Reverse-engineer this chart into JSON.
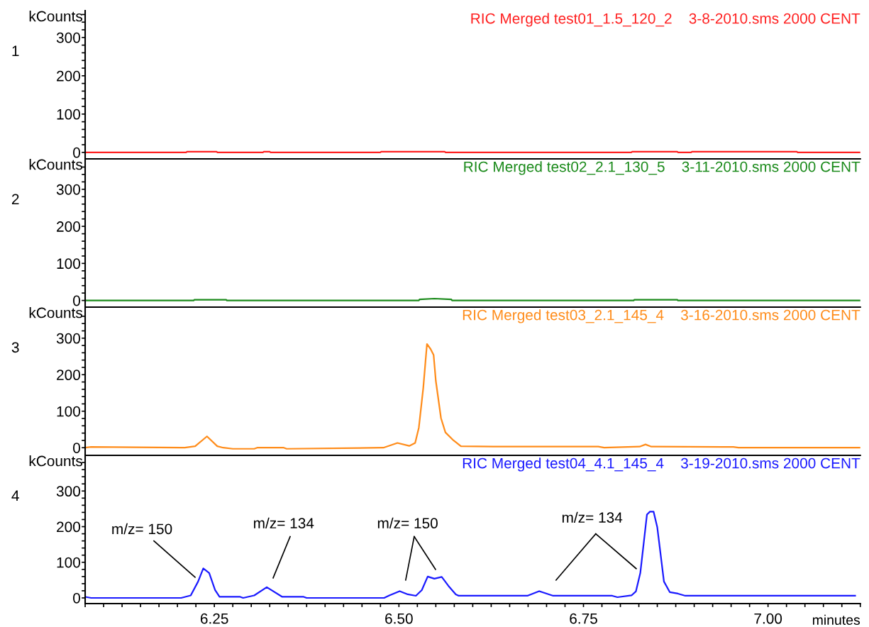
{
  "chart_data": [
    {
      "type": "line",
      "title": "RIC Merged test01_1.5_120_2    3-8-2010.sms 2000 CENT",
      "ylabel": "kCounts",
      "annotations": [
        "1"
      ],
      "tick_labels": "y",
      "xlim": [
        6.075,
        7.125
      ],
      "ylim": [
        -17,
        370
      ],
      "yticks": [
        0,
        {
          "value": 20,
          "label": null
        },
        {
          "value": 40,
          "label": null
        },
        {
          "value": 60,
          "label": null
        },
        {
          "value": 80,
          "label": null
        },
        100,
        {
          "value": 120,
          "label": null
        },
        {
          "value": 140,
          "label": null
        },
        {
          "value": 160,
          "label": null
        },
        {
          "value": 180,
          "label": null
        },
        200,
        {
          "value": 220,
          "label": null
        },
        {
          "value": 240,
          "label": null
        },
        {
          "value": 260,
          "label": null
        },
        {
          "value": 280,
          "label": null
        },
        300,
        {
          "value": 320,
          "label": null
        },
        {
          "value": 340,
          "label": null
        },
        {
          "value": 360,
          "label": null
        }
      ],
      "x": [
        6.075,
        6.212,
        6.213,
        6.253,
        6.254,
        6.316,
        6.317,
        6.325,
        6.326,
        6.475,
        6.476,
        6.562,
        6.563,
        6.815,
        6.816,
        6.877,
        6.878,
        6.896,
        6.897,
        7.039,
        7.04,
        7.125
      ],
      "series": [
        {
          "color": "#ff2020",
          "values": [
            0,
            0,
            2,
            2,
            0,
            0,
            2,
            2,
            0,
            0,
            2,
            2,
            0,
            0,
            2,
            2,
            0,
            0,
            2,
            2,
            0,
            0
          ]
        }
      ]
    },
    {
      "type": "line",
      "title": "RIC Merged test02_2.1_130_5    3-11-2010.sms 2000 CENT",
      "ylabel": "kCounts",
      "annotations": [
        "2"
      ],
      "tick_labels": "y",
      "xlim": [
        6.075,
        7.125
      ],
      "ylim": [
        -18,
        382
      ],
      "yticks": [
        0,
        {
          "value": 20,
          "label": null
        },
        {
          "value": 40,
          "label": null
        },
        {
          "value": 60,
          "label": null
        },
        {
          "value": 80,
          "label": null
        },
        100,
        {
          "value": 120,
          "label": null
        },
        {
          "value": 140,
          "label": null
        },
        {
          "value": 160,
          "label": null
        },
        {
          "value": 180,
          "label": null
        },
        200,
        {
          "value": 220,
          "label": null
        },
        {
          "value": 240,
          "label": null
        },
        {
          "value": 260,
          "label": null
        },
        {
          "value": 280,
          "label": null
        },
        300,
        {
          "value": 320,
          "label": null
        },
        {
          "value": 340,
          "label": null
        },
        {
          "value": 360,
          "label": null
        }
      ],
      "x": [
        6.075,
        6.222,
        6.223,
        6.266,
        6.267,
        6.527,
        6.528,
        6.548,
        6.571,
        6.572,
        6.818,
        6.819,
        6.877,
        6.878,
        7.125
      ],
      "series": [
        {
          "color": "#1a8a1a",
          "values": [
            0,
            0,
            2,
            2,
            0,
            0,
            3,
            5,
            3,
            0,
            0,
            2,
            2,
            0,
            0
          ]
        }
      ]
    },
    {
      "type": "line",
      "title": "RIC Merged test03_2.1_145_4    3-16-2010.sms 2000 CENT",
      "ylabel": "kCounts",
      "annotations": [
        "3"
      ],
      "tick_labels": "y",
      "xlim": [
        6.075,
        7.125
      ],
      "ylim": [
        -21,
        385
      ],
      "yticks": [
        0,
        {
          "value": 20,
          "label": null
        },
        {
          "value": 40,
          "label": null
        },
        {
          "value": 60,
          "label": null
        },
        {
          "value": 80,
          "label": null
        },
        100,
        {
          "value": 120,
          "label": null
        },
        {
          "value": 140,
          "label": null
        },
        {
          "value": 160,
          "label": null
        },
        {
          "value": 180,
          "label": null
        },
        200,
        {
          "value": 220,
          "label": null
        },
        {
          "value": 240,
          "label": null
        },
        {
          "value": 260,
          "label": null
        },
        {
          "value": 280,
          "label": null
        },
        300,
        {
          "value": 320,
          "label": null
        },
        {
          "value": 340,
          "label": null
        },
        {
          "value": 360,
          "label": null
        }
      ],
      "x": [
        6.075,
        6.083,
        6.21,
        6.224,
        6.24,
        6.254,
        6.262,
        6.275,
        6.304,
        6.308,
        6.344,
        6.348,
        6.479,
        6.498,
        6.514,
        6.522,
        6.527,
        6.533,
        6.538,
        6.543,
        6.547,
        6.55,
        6.557,
        6.563,
        6.574,
        6.584,
        6.628,
        6.77,
        6.778,
        6.826,
        6.834,
        6.842,
        6.953,
        6.96,
        7.125
      ],
      "series": [
        {
          "color": "#ff8c1a",
          "values": [
            0,
            2,
            0,
            4,
            31,
            4,
            0,
            -3,
            -3,
            0,
            0,
            -3,
            0,
            13,
            5,
            13,
            55,
            164,
            284,
            270,
            254,
            183,
            81,
            42,
            20,
            4,
            3,
            3,
            0,
            3,
            9,
            3,
            2,
            0,
            0
          ]
        }
      ]
    },
    {
      "type": "line",
      "title": "RIC Merged test04_4.1_145_4    3-19-2010.sms 2000 CENT",
      "ylabel": "kCounts",
      "xlabel": "minutes",
      "annotations": [
        "4",
        "m/z= 150",
        "m/z= 134",
        "m/z= 150",
        "m/z= 134"
      ],
      "xlim": [
        6.075,
        7.125
      ],
      "ylim": [
        -16,
        400
      ],
      "xticks": [
        {
          "value": 6.075,
          "label": null
        },
        {
          "value": 6.1,
          "label": null
        },
        {
          "value": 6.125,
          "label": null
        },
        {
          "value": 6.15,
          "label": null
        },
        {
          "value": 6.175,
          "label": null
        },
        {
          "value": 6.2,
          "label": null
        },
        {
          "value": 6.225,
          "label": null
        },
        6.25,
        {
          "value": 6.275,
          "label": null
        },
        {
          "value": 6.3,
          "label": null
        },
        {
          "value": 6.325,
          "label": null
        },
        {
          "value": 6.35,
          "label": null
        },
        {
          "value": 6.375,
          "label": null
        },
        {
          "value": 6.4,
          "label": null
        },
        {
          "value": 6.425,
          "label": null
        },
        {
          "value": 6.45,
          "label": null
        },
        {
          "value": 6.475,
          "label": null
        },
        {
          "value": 6.5,
          "label": "6.50"
        },
        {
          "value": 6.525,
          "label": null
        },
        {
          "value": 6.55,
          "label": null
        },
        {
          "value": 6.575,
          "label": null
        },
        {
          "value": 6.6,
          "label": null
        },
        {
          "value": 6.625,
          "label": null
        },
        {
          "value": 6.65,
          "label": null
        },
        {
          "value": 6.675,
          "label": null
        },
        {
          "value": 6.7,
          "label": null
        },
        {
          "value": 6.725,
          "label": null
        },
        6.75,
        {
          "value": 6.775,
          "label": null
        },
        {
          "value": 6.8,
          "label": null
        },
        {
          "value": 6.825,
          "label": null
        },
        {
          "value": 6.85,
          "label": null
        },
        {
          "value": 6.875,
          "label": null
        },
        {
          "value": 6.9,
          "label": null
        },
        {
          "value": 6.925,
          "label": null
        },
        {
          "value": 6.95,
          "label": null
        },
        {
          "value": 6.975,
          "label": null
        },
        {
          "value": 7.0,
          "label": "7.00"
        },
        {
          "value": 7.025,
          "label": null
        },
        {
          "value": 7.05,
          "label": null
        },
        {
          "value": 7.075,
          "label": null
        },
        {
          "value": 7.1,
          "label": null
        },
        {
          "value": 7.125,
          "label": null
        }
      ],
      "yticks": [
        0,
        {
          "value": 20,
          "label": null
        },
        {
          "value": 40,
          "label": null
        },
        {
          "value": 60,
          "label": null
        },
        {
          "value": 80,
          "label": null
        },
        100,
        {
          "value": 120,
          "label": null
        },
        {
          "value": 140,
          "label": null
        },
        {
          "value": 160,
          "label": null
        },
        {
          "value": 180,
          "label": null
        },
        200,
        {
          "value": 220,
          "label": null
        },
        {
          "value": 240,
          "label": null
        },
        {
          "value": 260,
          "label": null
        },
        {
          "value": 280,
          "label": null
        },
        300,
        {
          "value": 320,
          "label": null
        },
        {
          "value": 340,
          "label": null
        },
        {
          "value": 360,
          "label": null
        },
        {
          "value": 380,
          "label": null
        }
      ],
      "x": [
        6.075,
        6.083,
        6.205,
        6.218,
        6.228,
        6.235,
        6.243,
        6.251,
        6.257,
        6.285,
        6.289,
        6.304,
        6.321,
        6.342,
        6.371,
        6.375,
        6.48,
        6.487,
        6.501,
        6.512,
        6.523,
        6.531,
        6.539,
        6.548,
        6.558,
        6.567,
        6.577,
        6.581,
        6.674,
        6.69,
        6.709,
        6.789,
        6.796,
        6.815,
        6.821,
        6.827,
        6.836,
        6.84,
        6.845,
        6.85,
        6.859,
        6.867,
        6.878,
        6.888,
        7.118
      ],
      "series": [
        {
          "color": "#1a1aff",
          "values": [
            3,
            0,
            0,
            7,
            46,
            83,
            70,
            22,
            3,
            3,
            0,
            7,
            30,
            3,
            3,
            0,
            0,
            7,
            19,
            10,
            6,
            22,
            60,
            54,
            59,
            34,
            10,
            6,
            6,
            19,
            6,
            6,
            2,
            7,
            18,
            70,
            234,
            242,
            242,
            198,
            46,
            16,
            12,
            6,
            6
          ]
        }
      ]
    }
  ]
}
